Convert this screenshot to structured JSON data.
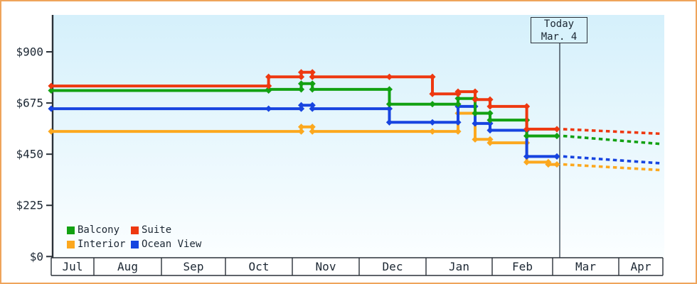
{
  "page": {
    "border_color": "#efa45b",
    "background": "#ffffff"
  },
  "chart": {
    "today": {
      "line1": "Today",
      "line2": "Mar. 4",
      "month": "Mar",
      "day": 4
    },
    "y_axis": {
      "ticks": [
        {
          "label": "$0",
          "value": 0
        },
        {
          "label": "$225",
          "value": 225
        },
        {
          "label": "$450",
          "value": 450
        },
        {
          "label": "$675",
          "value": 675
        },
        {
          "label": "$900",
          "value": 900
        }
      ]
    },
    "legend": [
      {
        "label": "Balcony",
        "color": "#12a112"
      },
      {
        "label": "Suite",
        "color": "#ee3810"
      },
      {
        "label": "Interior",
        "color": "#fca81e"
      },
      {
        "label": "Ocean View",
        "color": "#1744e0"
      }
    ]
  },
  "chart_data": {
    "type": "line",
    "subtype": "step-after-price-history",
    "title": "",
    "ylabel": "",
    "xlabel": "",
    "ylim": [
      0,
      900
    ],
    "y_ticks": [
      0,
      225,
      450,
      675,
      900
    ],
    "x_months": [
      "Jul",
      "Aug",
      "Sep",
      "Oct",
      "Nov",
      "Dec",
      "Jan",
      "Feb",
      "Mar",
      "Apr"
    ],
    "grid": false,
    "legend_position": "bottom-left",
    "today_marker": {
      "month": "Mar",
      "day": 4,
      "label": "Today Mar. 4"
    },
    "series": [
      {
        "name": "Interior",
        "color": "#fca81e",
        "points": [
          [
            "Jul",
            11,
            550
          ],
          [
            "Nov",
            5,
            570
          ],
          [
            "Nov",
            10,
            550
          ],
          [
            "Jan",
            4,
            550
          ],
          [
            "Jan",
            16,
            630
          ],
          [
            "Jan",
            24,
            515
          ],
          [
            "Jan",
            31,
            500
          ],
          [
            "Feb",
            17,
            415
          ],
          [
            "Feb",
            27,
            405
          ],
          [
            "Mar",
            3,
            405
          ]
        ],
        "projection": {
          "from": [
            "Mar",
            5,
            405
          ],
          "to": [
            "Apr",
            20,
            380
          ]
        }
      },
      {
        "name": "Ocean View",
        "color": "#1744e0",
        "points": [
          [
            "Jul",
            11,
            650
          ],
          [
            "Oct",
            21,
            650
          ],
          [
            "Nov",
            5,
            665
          ],
          [
            "Nov",
            10,
            650
          ],
          [
            "Dec",
            15,
            590
          ],
          [
            "Jan",
            4,
            590
          ],
          [
            "Jan",
            16,
            660
          ],
          [
            "Jan",
            24,
            585
          ],
          [
            "Jan",
            31,
            555
          ],
          [
            "Feb",
            17,
            440
          ],
          [
            "Mar",
            3,
            440
          ]
        ],
        "projection": {
          "from": [
            "Mar",
            5,
            440
          ],
          "to": [
            "Apr",
            20,
            410
          ]
        }
      },
      {
        "name": "Balcony",
        "color": "#12a112",
        "points": [
          [
            "Jul",
            11,
            730
          ],
          [
            "Oct",
            21,
            735
          ],
          [
            "Nov",
            5,
            760
          ],
          [
            "Nov",
            10,
            735
          ],
          [
            "Dec",
            15,
            670
          ],
          [
            "Jan",
            4,
            670
          ],
          [
            "Jan",
            16,
            695
          ],
          [
            "Jan",
            24,
            630
          ],
          [
            "Jan",
            31,
            600
          ],
          [
            "Feb",
            17,
            530
          ],
          [
            "Mar",
            3,
            530
          ]
        ],
        "projection": {
          "from": [
            "Mar",
            5,
            530
          ],
          "to": [
            "Apr",
            20,
            495
          ]
        }
      },
      {
        "name": "Suite",
        "color": "#ee3810",
        "points": [
          [
            "Jul",
            11,
            750
          ],
          [
            "Oct",
            21,
            790
          ],
          [
            "Nov",
            5,
            810
          ],
          [
            "Nov",
            10,
            790
          ],
          [
            "Dec",
            15,
            790
          ],
          [
            "Jan",
            4,
            715
          ],
          [
            "Jan",
            16,
            725
          ],
          [
            "Jan",
            24,
            690
          ],
          [
            "Jan",
            31,
            660
          ],
          [
            "Feb",
            17,
            560
          ],
          [
            "Mar",
            3,
            560
          ]
        ],
        "projection": {
          "from": [
            "Mar",
            5,
            560
          ],
          "to": [
            "Apr",
            20,
            540
          ]
        }
      }
    ]
  }
}
